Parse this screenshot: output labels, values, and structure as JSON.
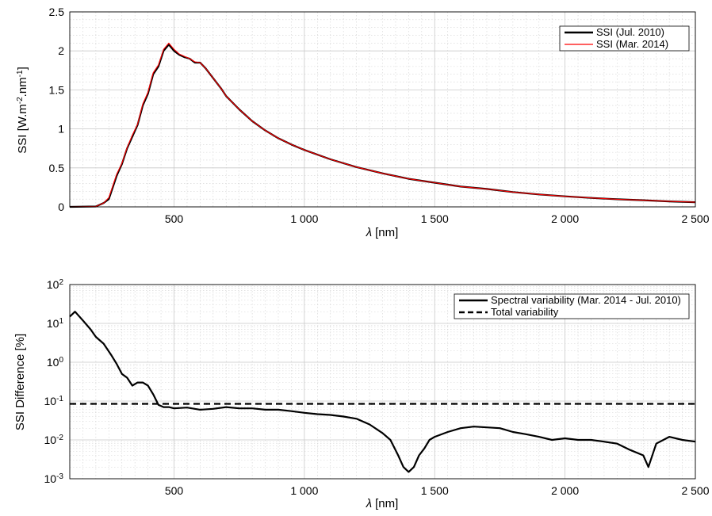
{
  "chart_data": [
    {
      "type": "line",
      "xlabel_symbol": "λ",
      "xlabel_unit": "[nm]",
      "ylabel_main": "SSI [W.m",
      "ylabel_sup1": "-2",
      "ylabel_mid": ".nm",
      "ylabel_sup2": "-1",
      "ylabel_end": "]",
      "xlim": [
        100,
        2500
      ],
      "ylim": [
        0,
        2.5
      ],
      "xticks": [
        500,
        1000,
        1500,
        2000,
        2500
      ],
      "xtick_labels": [
        "500",
        "1 000",
        "1 500",
        "2 000",
        "2 500"
      ],
      "yticks": [
        0,
        0.5,
        1,
        1.5,
        2,
        2.5
      ],
      "ytick_labels": [
        "0",
        "0.5",
        "1",
        "1.5",
        "2",
        "2.5"
      ],
      "grid": true,
      "legend_position": "top-right",
      "series": [
        {
          "name": "SSI (Jul. 2010)",
          "color": "#000000",
          "x": [
            100,
            200,
            230,
            250,
            280,
            300,
            320,
            340,
            360,
            380,
            400,
            420,
            440,
            460,
            480,
            500,
            520,
            540,
            560,
            580,
            600,
            620,
            650,
            680,
            700,
            750,
            800,
            850,
            900,
            950,
            1000,
            1100,
            1200,
            1300,
            1400,
            1500,
            1600,
            1700,
            1800,
            1900,
            2000,
            2100,
            2200,
            2300,
            2400,
            2500
          ],
          "y": [
            0,
            0.005,
            0.05,
            0.1,
            0.4,
            0.55,
            0.75,
            0.9,
            1.05,
            1.3,
            1.45,
            1.7,
            1.8,
            2.0,
            2.08,
            2.0,
            1.95,
            1.92,
            1.9,
            1.85,
            1.85,
            1.78,
            1.65,
            1.52,
            1.42,
            1.25,
            1.1,
            0.98,
            0.88,
            0.8,
            0.73,
            0.61,
            0.51,
            0.43,
            0.36,
            0.31,
            0.26,
            0.23,
            0.19,
            0.16,
            0.135,
            0.115,
            0.098,
            0.085,
            0.07,
            0.06
          ]
        },
        {
          "name": "SSI (Mar. 2014)",
          "color": "#ff0000",
          "x": [
            100,
            200,
            230,
            250,
            280,
            300,
            320,
            340,
            360,
            380,
            400,
            420,
            440,
            460,
            480,
            500,
            520,
            540,
            560,
            580,
            600,
            620,
            650,
            680,
            700,
            750,
            800,
            850,
            900,
            950,
            1000,
            1100,
            1200,
            1300,
            1400,
            1500,
            1600,
            1700,
            1800,
            1900,
            2000,
            2100,
            2200,
            2300,
            2400,
            2500
          ],
          "y": [
            0,
            0.005,
            0.05,
            0.12,
            0.42,
            0.56,
            0.76,
            0.92,
            1.06,
            1.32,
            1.47,
            1.72,
            1.82,
            2.02,
            2.1,
            2.02,
            1.96,
            1.93,
            1.9,
            1.86,
            1.85,
            1.78,
            1.65,
            1.52,
            1.42,
            1.25,
            1.1,
            0.98,
            0.88,
            0.8,
            0.73,
            0.61,
            0.51,
            0.43,
            0.36,
            0.31,
            0.26,
            0.23,
            0.19,
            0.16,
            0.135,
            0.115,
            0.098,
            0.085,
            0.07,
            0.06
          ]
        }
      ]
    },
    {
      "type": "line",
      "xlabel_symbol": "λ",
      "xlabel_unit": "[nm]",
      "ylabel": "SSI Difference [%]",
      "yscale": "log",
      "xlim": [
        100,
        2500
      ],
      "ylim": [
        0.001,
        100
      ],
      "xticks": [
        500,
        1000,
        1500,
        2000,
        2500
      ],
      "xtick_labels": [
        "500",
        "1 000",
        "1 500",
        "2 000",
        "2 500"
      ],
      "ytick_exponents": [
        "-3",
        "-2",
        "-1",
        "0",
        "1",
        "2"
      ],
      "ytick_base": "10",
      "grid": true,
      "legend_position": "top-right",
      "series": [
        {
          "name": "Spectral variability (Mar. 2014 - Jul. 2010)",
          "color": "#000000",
          "dash": "solid",
          "x": [
            100,
            120,
            150,
            180,
            200,
            230,
            260,
            280,
            300,
            320,
            340,
            360,
            380,
            400,
            420,
            440,
            460,
            480,
            500,
            550,
            600,
            650,
            700,
            750,
            800,
            850,
            900,
            950,
            1000,
            1050,
            1100,
            1150,
            1200,
            1250,
            1300,
            1330,
            1360,
            1380,
            1400,
            1420,
            1440,
            1460,
            1480,
            1500,
            1550,
            1600,
            1650,
            1700,
            1750,
            1800,
            1850,
            1900,
            1950,
            2000,
            2050,
            2100,
            2150,
            2200,
            2250,
            2300,
            2320,
            2350,
            2400,
            2450,
            2500
          ],
          "y": [
            15,
            20,
            12,
            7,
            4.5,
            3,
            1.5,
            0.9,
            0.5,
            0.4,
            0.25,
            0.3,
            0.3,
            0.25,
            0.15,
            0.08,
            0.07,
            0.07,
            0.065,
            0.068,
            0.06,
            0.063,
            0.07,
            0.065,
            0.065,
            0.06,
            0.06,
            0.055,
            0.05,
            0.046,
            0.044,
            0.04,
            0.035,
            0.025,
            0.015,
            0.01,
            0.004,
            0.002,
            0.0015,
            0.002,
            0.004,
            0.006,
            0.01,
            0.012,
            0.016,
            0.02,
            0.022,
            0.021,
            0.02,
            0.016,
            0.014,
            0.012,
            0.01,
            0.011,
            0.01,
            0.01,
            0.009,
            0.008,
            0.0055,
            0.004,
            0.002,
            0.008,
            0.012,
            0.01,
            0.009
          ]
        },
        {
          "name": "Total variability",
          "color": "#000000",
          "dash": "dashed",
          "x": [
            100,
            2500
          ],
          "y": [
            0.085,
            0.085
          ]
        }
      ]
    }
  ]
}
